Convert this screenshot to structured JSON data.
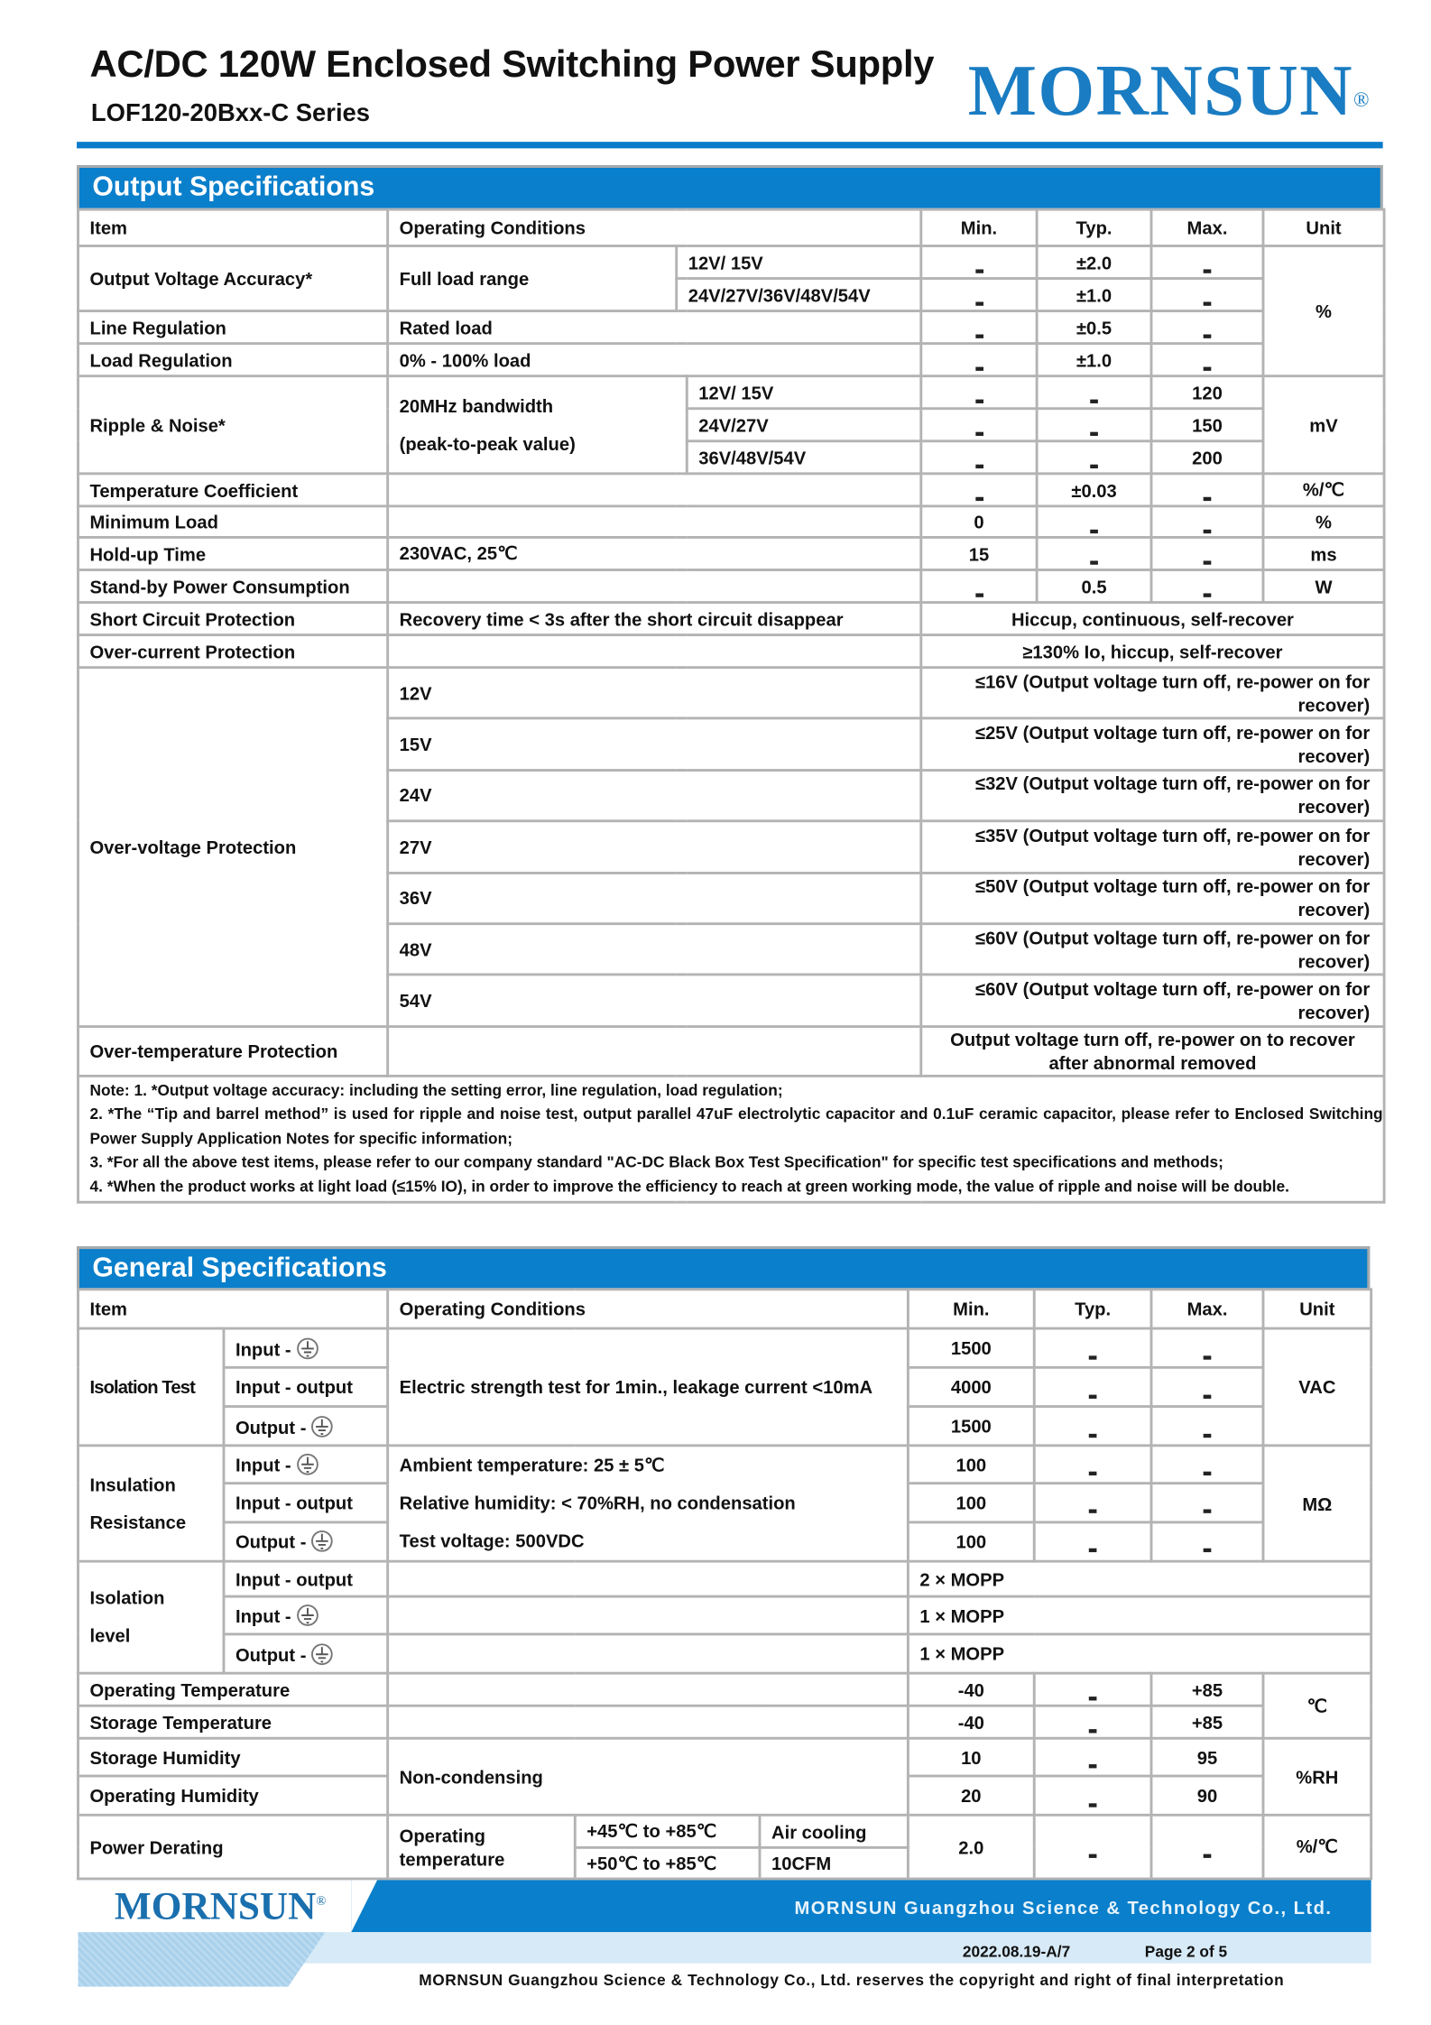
{
  "header": {
    "title": "AC/DC 120W Enclosed Switching Power Supply",
    "subtitle": "LOF120-20Bxx-C Series",
    "logo": "MORNSUN",
    "logo_mark": "®",
    "accent_color": "#0a7fcb"
  },
  "output": {
    "section_title": "Output  Specifications",
    "headers": {
      "item": "Item",
      "cond": "Operating Conditions",
      "min": "Min.",
      "typ": "Typ.",
      "max": "Max.",
      "unit": "Unit"
    },
    "ova": {
      "item": "Output Voltage Accuracy*",
      "cond": "Full load range",
      "sub1": "12V/ 15V",
      "typ1": "±2.0",
      "sub2": "24V/27V/36V/48V/54V",
      "typ2": "±1.0",
      "unit": "%"
    },
    "line": {
      "item": "Line Regulation",
      "cond": "Rated load",
      "typ": "±0.5"
    },
    "load": {
      "item": "Load Regulation",
      "cond": "0% - 100% load",
      "typ": "±1.0"
    },
    "ripple": {
      "item": "Ripple & Noise*",
      "cond1": "20MHz bandwidth",
      "cond2": "(peak-to-peak value)",
      "sub1": "12V/ 15V",
      "max1": "120",
      "sub2": "24V/27V",
      "max2": "150",
      "sub3": "36V/48V/54V",
      "max3": "200",
      "unit": "mV"
    },
    "tempco": {
      "item": "Temperature Coefficient",
      "typ": "±0.03",
      "unit": "%/℃"
    },
    "minload": {
      "item": "Minimum Load",
      "min": "0",
      "unit": "%"
    },
    "holdup": {
      "item": "Hold-up Time",
      "cond": "230VAC, 25℃",
      "min": "15",
      "unit": "ms"
    },
    "standby": {
      "item": "Stand-by Power Consumption",
      "typ": "0.5",
      "unit": "W"
    },
    "scp": {
      "item": "Short Circuit Protection",
      "cond": "Recovery time < 3s after the short circuit disappear",
      "value": "Hiccup, continuous, self-recover"
    },
    "ocp": {
      "item": "Over-current Protection",
      "value": "≥130% Io, hiccup, self-recover"
    },
    "ovp": {
      "item": "Over-voltage Protection",
      "rows": [
        {
          "voltage": "12V",
          "value": "≤16V (Output voltage turn off, re-power on for recover)"
        },
        {
          "voltage": "15V",
          "value": "≤25V (Output voltage turn off, re-power on for recover)"
        },
        {
          "voltage": "24V",
          "value": "≤32V (Output voltage turn off, re-power on for recover)"
        },
        {
          "voltage": "27V",
          "value": "≤35V (Output voltage turn off, re-power on for recover)"
        },
        {
          "voltage": "36V",
          "value": "≤50V (Output voltage turn off, re-power on for recover)"
        },
        {
          "voltage": "48V",
          "value": "≤60V (Output voltage turn off, re-power on for recover)"
        },
        {
          "voltage": "54V",
          "value": "≤60V (Output voltage turn off, re-power on for recover)"
        }
      ]
    },
    "otp": {
      "item": "Over-temperature Protection",
      "value": "Output voltage turn off, re-power on to recover after abnormal removed"
    },
    "notes": [
      "Note: 1. *Output voltage accuracy: including the setting error, line regulation, load regulation;",
      "2. *The “Tip and barrel method” is used for ripple and noise test, output parallel 47uF electrolytic capacitor and 0.1uF ceramic capacitor, please refer to Enclosed Switching Power Supply Application Notes for specific information;",
      "3. *For all the above test items, please refer to our company standard \"AC-DC Black Box Test Specification\" for specific test specifications and methods;",
      "4. *When the product works at light load (≤15% IO), in order to improve the efficiency to reach at green working mode, the value of ripple and noise will be double."
    ]
  },
  "general": {
    "section_title": "General  Specifications",
    "headers": {
      "item": "Item",
      "cond": "Operating Conditions",
      "min": "Min.",
      "typ": "Typ.",
      "max": "Max.",
      "unit": "Unit"
    },
    "labels": {
      "input_gnd": "Input -",
      "input_output": "Input - output",
      "output_gnd": "Output -"
    },
    "isolation_test": {
      "item": "Isolation Test",
      "cond": "Electric strength test for 1min., leakage current <10mA",
      "min": [
        "1500",
        "4000",
        "1500"
      ],
      "unit": "VAC"
    },
    "insulation": {
      "item1": "Insulation",
      "item2": "Resistance",
      "cond": [
        "Ambient temperature: 25 ± 5℃",
        "Relative humidity: < 70%RH, no condensation",
        "Test voltage: 500VDC"
      ],
      "min": [
        "100",
        "100",
        "100"
      ],
      "unit": "MΩ"
    },
    "isolation_level": {
      "item1": "Isolation",
      "item2": "level",
      "values": [
        "2 × MOPP",
        "1 × MOPP",
        "1 × MOPP"
      ]
    },
    "op_temp": {
      "item": "Operating Temperature",
      "min": "-40",
      "max": "+85"
    },
    "stor_temp": {
      "item": "Storage Temperature",
      "min": "-40",
      "max": "+85"
    },
    "temp_unit": "℃",
    "stor_hum": {
      "item": "Storage Humidity",
      "min": "10",
      "max": "95"
    },
    "op_hum": {
      "item": "Operating Humidity",
      "min": "20",
      "max": "90"
    },
    "hum_cond": "Non-condensing",
    "hum_unit": "%RH",
    "derating": {
      "item": "Power Derating",
      "cond1": "Operating",
      "cond2": "temperature",
      "range1": "+45℃ to +85℃",
      "cool1": "Air cooling",
      "range2": "+50℃ to +85℃",
      "cool2": "10CFM",
      "min": "2.0",
      "unit": "%/℃"
    }
  },
  "footer": {
    "logo": "MORNSUN",
    "logo_mark": "®",
    "company": "MORNSUN Guangzhou Science & Technology Co., Ltd.",
    "date_rev": "2022.08.19-A/7",
    "page": "Page 2 of 5",
    "copyright": "MORNSUN Guangzhou Science & Technology Co., Ltd. reserves the copyright and right of final interpretation"
  }
}
